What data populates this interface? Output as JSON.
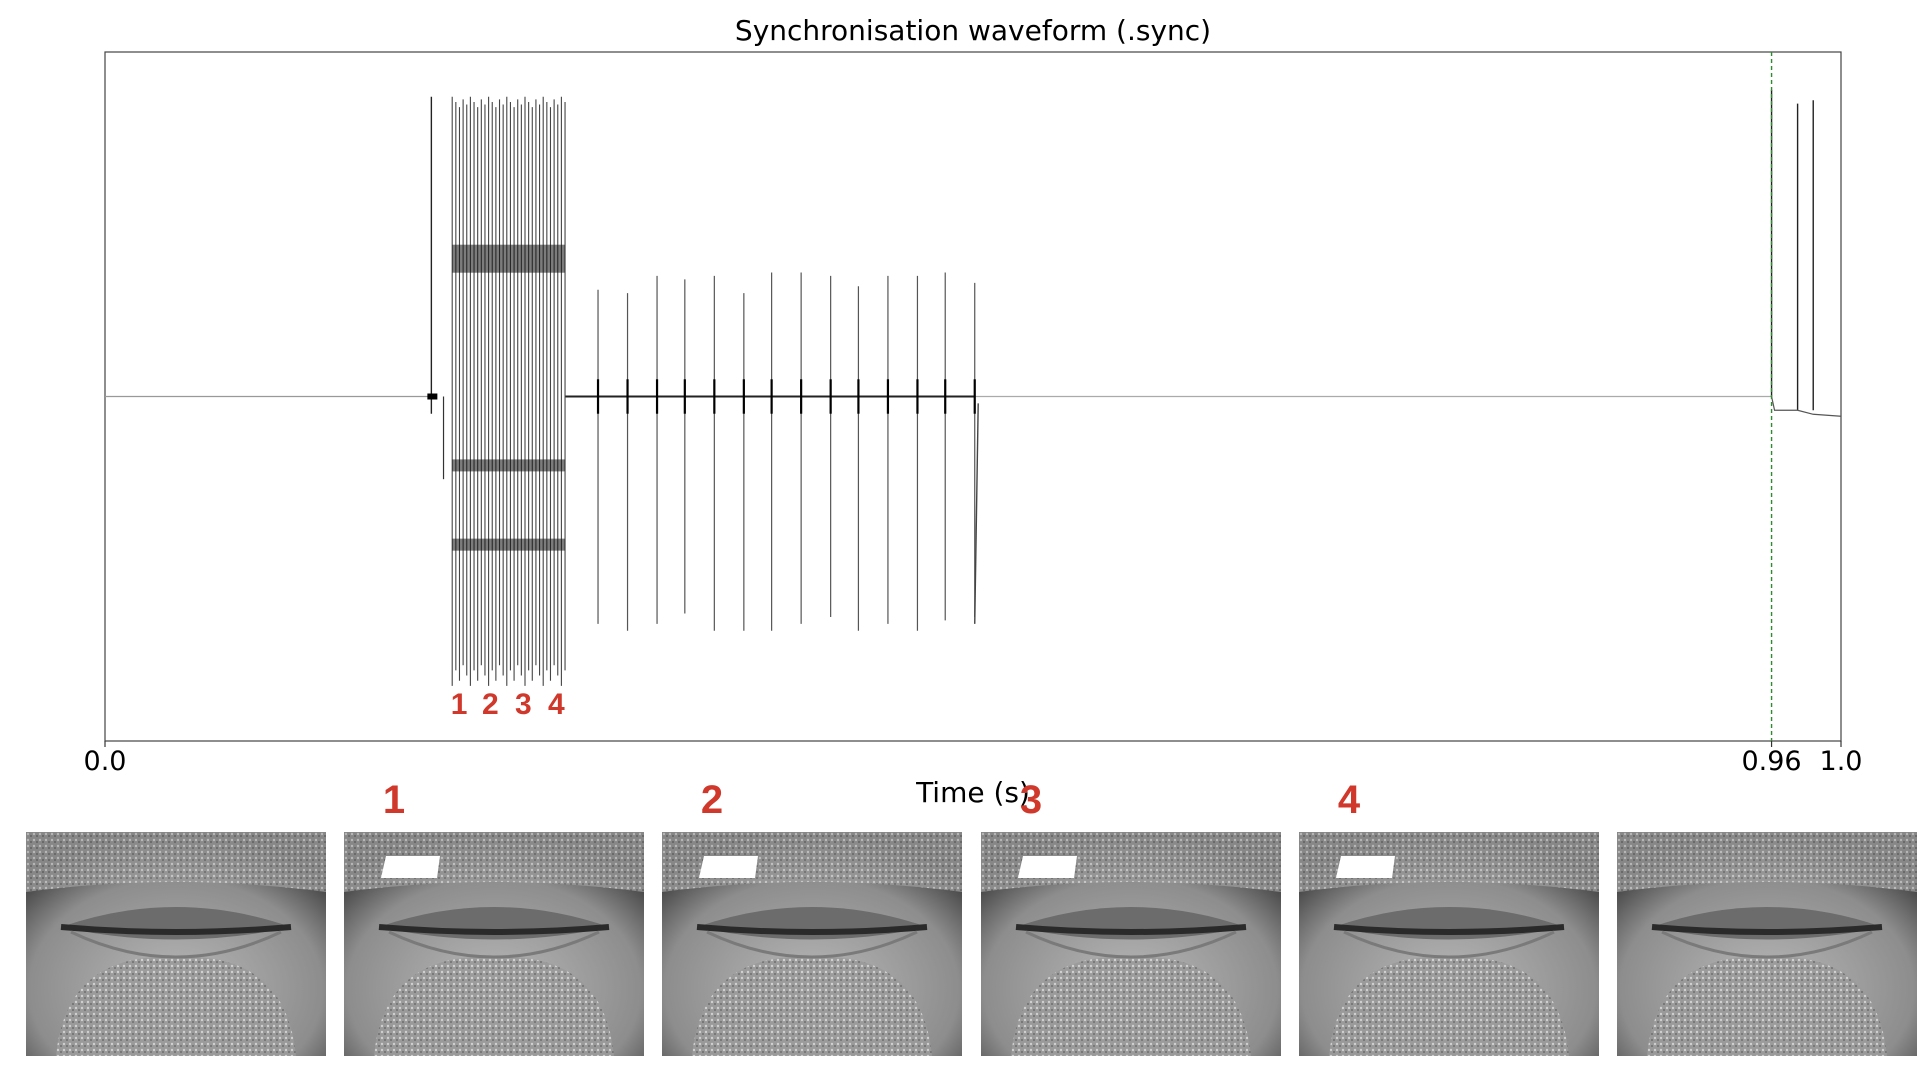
{
  "chart_data": {
    "type": "line",
    "title": "Synchronisation waveform (.sync)",
    "xlabel": "Time (s)",
    "ylabel": "",
    "xlim": [
      0.0,
      1.0
    ],
    "x_tick_labels": [
      {
        "value": 0.0,
        "label": "0.0"
      },
      {
        "value": 0.96,
        "label": "0.96"
      },
      {
        "value": 1.0,
        "label": "1.0"
      }
    ],
    "vline": {
      "x": 0.96,
      "color": "#2e8b2e",
      "style": "dashed"
    },
    "ylim": [
      -1.0,
      1.0
    ],
    "grid": false,
    "line_color": "#555555",
    "baseline": 0.0,
    "onset_transient_x": 0.188,
    "burst_group": {
      "x_start": 0.2,
      "x_end": 0.265,
      "pulse_count": 32,
      "amplitude_max": 0.87,
      "amplitude_min": -0.84
    },
    "pulse_train": {
      "x": [
        0.284,
        0.301,
        0.318,
        0.334,
        0.351,
        0.368,
        0.384,
        0.401,
        0.418,
        0.434,
        0.451,
        0.468,
        0.484,
        0.501
      ],
      "peaks": [
        0.31,
        0.3,
        0.35,
        0.34,
        0.35,
        0.3,
        0.36,
        0.36,
        0.35,
        0.32,
        0.35,
        0.35,
        0.36,
        0.33
      ],
      "troughs": [
        -0.66,
        -0.68,
        -0.66,
        -0.63,
        -0.68,
        -0.68,
        -0.68,
        -0.66,
        -0.64,
        -0.68,
        -0.66,
        -0.68,
        -0.65,
        -0.64
      ]
    },
    "late_pulses": {
      "x": [
        0.96,
        0.975,
        0.984
      ],
      "peaks": [
        0.89,
        0.85,
        0.86
      ],
      "offset_after": -0.04
    },
    "marker_labels": [
      {
        "x": 0.204,
        "label": "1"
      },
      {
        "x": 0.222,
        "label": "2"
      },
      {
        "x": 0.241,
        "label": "3"
      },
      {
        "x": 0.26,
        "label": "4"
      }
    ]
  },
  "frames": {
    "count": 6,
    "labels": [
      "",
      "1",
      "2",
      "3",
      "4",
      ""
    ],
    "label_color": "#d0382b",
    "marker_color": "#ffffff"
  }
}
